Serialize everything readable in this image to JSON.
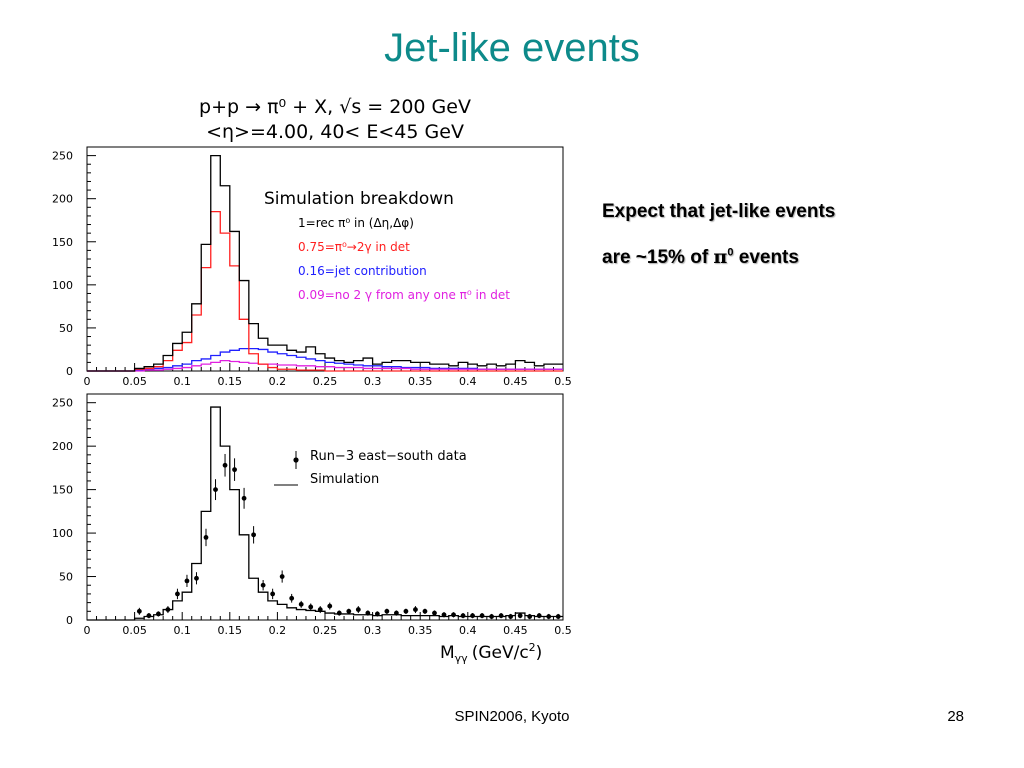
{
  "slide": {
    "title": "Jet-like events",
    "notes": {
      "line1": "Expect that jet-like events",
      "line2_prefix": "are ~15% of ",
      "line2_pi": "π",
      "line2_sup": "0",
      "line2_suffix": " events"
    },
    "footer": {
      "center": "SPIN2006, Kyoto",
      "page": "28"
    }
  },
  "colors": {
    "title": "#0d8a8a",
    "total": "#000000",
    "pi0": "#ff2020",
    "jet": "#2020ff",
    "no2g": "#e020e0"
  },
  "chart_data": [
    {
      "type": "line",
      "header": [
        "p+p → π⁰ + X, √s = 200 GeV",
        "<η>=4.00, 40< E<45 GeV"
      ],
      "title": "",
      "xlim": [
        0,
        0.5
      ],
      "ylim": [
        0,
        260
      ],
      "xticks": [
        "0",
        "0.05",
        "0.1",
        "0.15",
        "0.2",
        "0.25",
        "0.3",
        "0.35",
        "0.4",
        "0.45",
        "0.5"
      ],
      "yticks": [
        "0",
        "50",
        "100",
        "150",
        "200",
        "250"
      ],
      "legend_title": "Simulation breakdown",
      "legend_placement": "top-right",
      "bin_width": 0.01,
      "x_edges_start": 0,
      "series": [
        {
          "name": "1=rec π⁰ in (Δη,Δφ)",
          "color": "#000000",
          "values": [
            0,
            0,
            0,
            0,
            0,
            3,
            5,
            8,
            18,
            32,
            45,
            78,
            147,
            250,
            215,
            162,
            105,
            55,
            38,
            30,
            30,
            24,
            22,
            28,
            20,
            15,
            12,
            10,
            12,
            15,
            8,
            10,
            12,
            12,
            10,
            10,
            8,
            8,
            6,
            10,
            8,
            6,
            8,
            6,
            8,
            12,
            10,
            6,
            8,
            8
          ]
        },
        {
          "name": "0.75=π⁰→2γ in det",
          "color": "#ff2020",
          "values": [
            0,
            0,
            0,
            0,
            0,
            2,
            3,
            5,
            12,
            24,
            33,
            65,
            120,
            185,
            160,
            122,
            60,
            20,
            8,
            4,
            2,
            2,
            1,
            1,
            1,
            0,
            0,
            0,
            0,
            0,
            0,
            0,
            0,
            0,
            0,
            0,
            0,
            0,
            0,
            0,
            0,
            0,
            0,
            0,
            0,
            0,
            0,
            0,
            0,
            0
          ]
        },
        {
          "name": "0.16=jet contribution",
          "color": "#2020ff",
          "values": [
            0,
            0,
            0,
            0,
            0,
            1,
            2,
            3,
            4,
            6,
            8,
            12,
            14,
            18,
            22,
            24,
            26,
            26,
            25,
            22,
            20,
            18,
            16,
            14,
            12,
            10,
            9,
            8,
            7,
            6,
            6,
            5,
            5,
            4,
            4,
            4,
            3,
            3,
            3,
            3,
            3,
            2,
            2,
            2,
            2,
            2,
            2,
            2,
            2,
            2
          ]
        },
        {
          "name": "0.09=no 2 γ from any one π⁰ in det",
          "color": "#e020e0",
          "values": [
            0,
            0,
            0,
            0,
            0,
            0,
            1,
            1,
            2,
            3,
            4,
            6,
            8,
            10,
            12,
            11,
            10,
            9,
            8,
            8,
            7,
            7,
            6,
            6,
            5,
            5,
            4,
            4,
            4,
            3,
            3,
            3,
            3,
            3,
            2,
            2,
            2,
            2,
            2,
            2,
            2,
            2,
            2,
            2,
            2,
            2,
            2,
            2,
            2,
            2
          ]
        }
      ]
    },
    {
      "type": "line",
      "title": "",
      "xlim": [
        0,
        0.5
      ],
      "ylim": [
        0,
        260
      ],
      "xticks": [
        "0",
        "0.05",
        "0.1",
        "0.15",
        "0.2",
        "0.25",
        "0.3",
        "0.35",
        "0.4",
        "0.45",
        "0.5"
      ],
      "yticks": [
        "0",
        "50",
        "100",
        "150",
        "200",
        "250"
      ],
      "xlabel": "M",
      "xlabel_sub": "γγ",
      "xlabel_units": "(GeV/c",
      "xlabel_units_sup": "2",
      "xlabel_units_close": ")",
      "legend_placement": "top-right",
      "bin_width": 0.01,
      "x_edges_start": 0,
      "simulation": {
        "name": "Simulation",
        "values": [
          0,
          0,
          0,
          0,
          0,
          2,
          4,
          6,
          12,
          22,
          32,
          65,
          125,
          245,
          200,
          150,
          98,
          48,
          32,
          22,
          18,
          14,
          12,
          11,
          10,
          8,
          7,
          7,
          6,
          6,
          5,
          6,
          6,
          5,
          5,
          5,
          5,
          4,
          5,
          4,
          4,
          4,
          4,
          4,
          5,
          8,
          5,
          4,
          4,
          4
        ]
      },
      "data": {
        "name": "Run−3 east−south data",
        "x": [
          0.055,
          0.065,
          0.075,
          0.085,
          0.095,
          0.105,
          0.115,
          0.125,
          0.135,
          0.145,
          0.155,
          0.165,
          0.175,
          0.185,
          0.195,
          0.205,
          0.215,
          0.225,
          0.235,
          0.245,
          0.255,
          0.265,
          0.275,
          0.285,
          0.295,
          0.305,
          0.315,
          0.325,
          0.335,
          0.345,
          0.355,
          0.365,
          0.375,
          0.385,
          0.395,
          0.405,
          0.415,
          0.425,
          0.435,
          0.445,
          0.455,
          0.465,
          0.475,
          0.485,
          0.495
        ],
        "y": [
          10,
          5,
          7,
          12,
          30,
          45,
          48,
          95,
          150,
          178,
          173,
          140,
          98,
          40,
          30,
          50,
          25,
          18,
          15,
          12,
          16,
          8,
          10,
          12,
          8,
          7,
          10,
          8,
          10,
          12,
          10,
          8,
          6,
          6,
          5,
          5,
          5,
          4,
          5,
          4,
          5,
          4,
          5,
          4,
          4
        ],
        "err": [
          4,
          3,
          3,
          4,
          6,
          7,
          7,
          10,
          12,
          13,
          13,
          12,
          10,
          6,
          6,
          7,
          5,
          4,
          4,
          4,
          4,
          3,
          3,
          4,
          3,
          3,
          3,
          3,
          3,
          4,
          3,
          3,
          3,
          3,
          3,
          3,
          3,
          3,
          3,
          3,
          3,
          3,
          3,
          3,
          3
        ]
      }
    }
  ]
}
